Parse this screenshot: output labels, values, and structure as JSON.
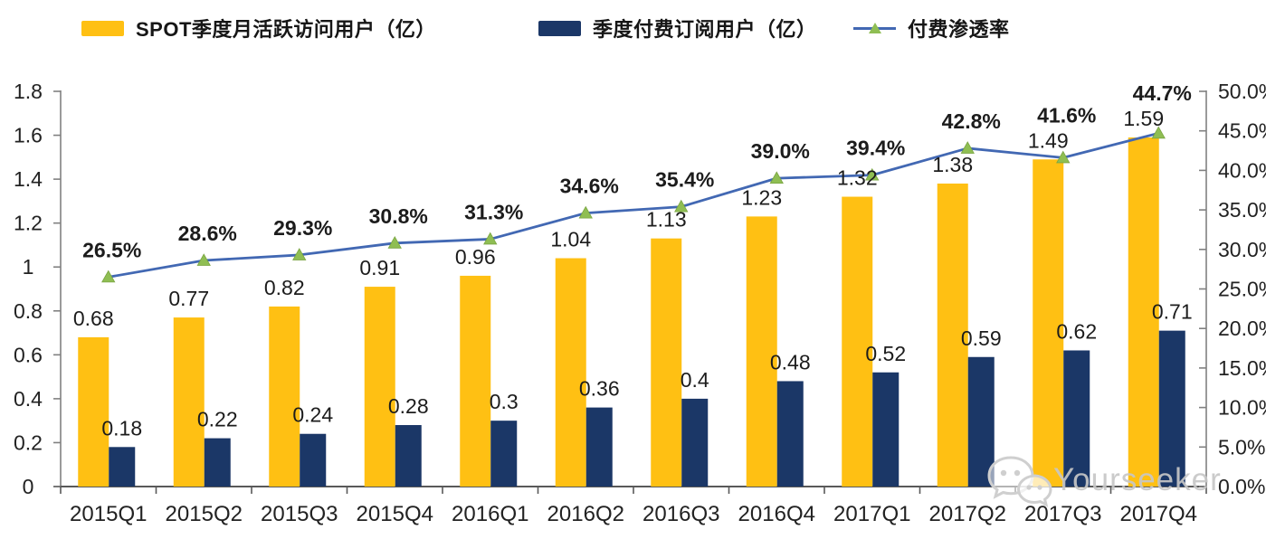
{
  "legend": {
    "items": [
      {
        "label": "SPOT季度月活跃访问用户（亿）",
        "color": "#FFC013",
        "type": "bar"
      },
      {
        "label": "季度付费订阅用户（亿）",
        "color": "#1B3767",
        "type": "bar"
      },
      {
        "label": "付费渗透率",
        "color": "#4268b3",
        "marker_color": "#8FBE53",
        "type": "line"
      }
    ]
  },
  "chart_data": {
    "type": "combo",
    "categories": [
      "2015Q1",
      "2015Q2",
      "2015Q3",
      "2015Q4",
      "2016Q1",
      "2016Q2",
      "2016Q3",
      "2016Q4",
      "2017Q1",
      "2017Q2",
      "2017Q3",
      "2017Q4"
    ],
    "series": [
      {
        "name": "SPOT季度月活跃访问用户（亿）",
        "type": "bar",
        "axis": "left",
        "color": "#FFC013",
        "values": [
          0.68,
          0.77,
          0.82,
          0.91,
          0.96,
          1.04,
          1.13,
          1.23,
          1.32,
          1.38,
          1.49,
          1.59
        ],
        "labels": [
          "0.68",
          "0.77",
          "0.82",
          "0.91",
          "0.96",
          "1.04",
          "1.13",
          "1.23",
          "1.32",
          "1.38",
          "1.49",
          "1.59"
        ]
      },
      {
        "name": "季度付费订阅用户（亿）",
        "type": "bar",
        "axis": "left",
        "color": "#1B3767",
        "values": [
          0.18,
          0.22,
          0.24,
          0.28,
          0.3,
          0.36,
          0.4,
          0.48,
          0.52,
          0.59,
          0.62,
          0.71
        ],
        "labels": [
          "0.18",
          "0.22",
          "0.24",
          "0.28",
          "0.3",
          "0.36",
          "0.4",
          "0.48",
          "0.52",
          "0.59",
          "0.62",
          "0.71"
        ]
      },
      {
        "name": "付费渗透率",
        "type": "line",
        "axis": "right",
        "color": "#4268b3",
        "marker": "triangle",
        "marker_color": "#8FBE53",
        "values": [
          26.5,
          28.6,
          29.3,
          30.8,
          31.3,
          34.6,
          35.4,
          39.0,
          39.4,
          42.8,
          41.6,
          44.7
        ],
        "labels": [
          "26.5%",
          "28.6%",
          "29.3%",
          "30.8%",
          "31.3%",
          "34.6%",
          "35.4%",
          "39.0%",
          "39.4%",
          "42.8%",
          "41.6%",
          "44.7%"
        ]
      }
    ],
    "left_axis": {
      "min": 0,
      "max": 1.8,
      "tick_step": 0.2,
      "tick_labels": [
        "0",
        "0.2",
        "0.4",
        "0.6",
        "0.8",
        "1",
        "1.2",
        "1.4",
        "1.6",
        "1.8"
      ]
    },
    "right_axis": {
      "min": 0,
      "max": 50,
      "tick_step": 5,
      "tick_labels": [
        "0.0%",
        "5.0%",
        "10.0%",
        "15.0%",
        "20.0%",
        "25.0%",
        "30.0%",
        "35.0%",
        "40.0%",
        "45.0%",
        "50.0%"
      ]
    },
    "grid": false,
    "legend_position": "top"
  },
  "watermark": {
    "text": "Yourseeker",
    "icon": "wechat-icon"
  }
}
